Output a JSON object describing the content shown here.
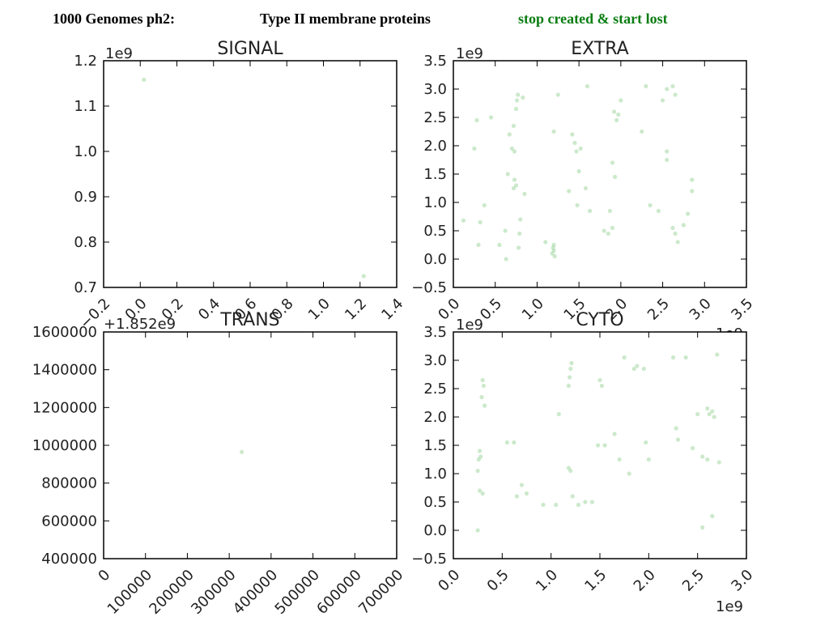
{
  "header": {
    "dataset": "1000 Genomes ph2:",
    "protein_type": "Type II membrane proteins",
    "mutation": "stop created & start lost",
    "mutation_color": "#0a7d12"
  },
  "chart_data": [
    {
      "type": "scatter",
      "title": "SIGNAL",
      "xlim": [
        -0.2,
        1.4
      ],
      "ylim": [
        0.7,
        1.2
      ],
      "x_ticks": [
        "−0.2",
        "0.0",
        "0.2",
        "0.4",
        "0.6",
        "0.8",
        "1.0",
        "1.2",
        "1.4"
      ],
      "y_ticks": [
        "0.7",
        "0.8",
        "0.9",
        "1.0",
        "1.1",
        "1.2"
      ],
      "x_offset_text": "+1.852e9",
      "y_offset_text": "1e9",
      "point_color": "#8fcf8f",
      "x": [
        0.02,
        1.22
      ],
      "y": [
        1.158,
        0.725
      ]
    },
    {
      "type": "scatter",
      "title": "EXTRA",
      "xlim": [
        0.0,
        3.5
      ],
      "ylim": [
        -0.5,
        3.5
      ],
      "x_ticks": [
        "0.0",
        "0.5",
        "1.0",
        "1.5",
        "2.0",
        "2.5",
        "3.0",
        "3.5"
      ],
      "y_ticks": [
        "−0.5",
        "0.0",
        "0.5",
        "1.0",
        "1.5",
        "2.0",
        "2.5",
        "3.0",
        "3.5"
      ],
      "x_offset_text": "1e9",
      "y_offset_text": "1e9",
      "point_color": "#8fcf8f",
      "x": [
        0.12,
        0.25,
        0.28,
        0.3,
        0.32,
        0.37,
        0.45,
        0.63,
        0.65,
        0.67,
        0.7,
        0.72,
        0.73,
        0.75,
        0.76,
        0.77,
        0.78,
        0.79,
        0.8,
        0.83,
        0.85,
        0.75,
        0.73,
        0.72,
        1.1,
        1.18,
        1.19,
        1.2,
        1.2,
        1.21,
        1.2,
        1.25,
        1.42,
        1.45,
        1.47,
        1.48,
        1.5,
        1.52,
        1.6,
        1.63,
        1.8,
        1.85,
        1.9,
        1.92,
        1.95,
        1.97,
        2.0,
        1.9,
        1.93,
        1.87,
        2.25,
        2.3,
        2.35,
        2.45,
        2.5,
        2.55,
        2.55,
        2.62,
        2.65,
        2.68,
        2.75,
        2.8,
        2.85,
        2.85,
        2.62,
        2.65,
        2.55,
        1.58,
        1.38,
        0.62,
        0.55
      ],
      "y": [
        0.68,
        1.95,
        2.45,
        0.25,
        0.65,
        0.95,
        2.5,
        0.0,
        1.5,
        2.2,
        1.95,
        1.25,
        1.4,
        2.65,
        2.8,
        2.9,
        0.2,
        0.45,
        0.7,
        2.85,
        1.15,
        1.3,
        1.9,
        2.35,
        0.3,
        0.1,
        0.2,
        0.15,
        0.25,
        0.05,
        2.25,
        2.9,
        2.2,
        2.05,
        1.9,
        0.95,
        1.55,
        1.95,
        3.05,
        0.85,
        0.5,
        0.45,
        0.55,
        2.6,
        2.45,
        2.55,
        2.8,
        1.7,
        1.45,
        0.85,
        2.25,
        3.05,
        0.95,
        0.85,
        2.8,
        3.0,
        1.9,
        3.05,
        2.9,
        0.3,
        0.6,
        0.8,
        1.4,
        1.2,
        0.55,
        0.45,
        1.75,
        1.25,
        1.2,
        0.5,
        0.25
      ]
    },
    {
      "type": "scatter",
      "title": "TRANS",
      "xlim": [
        0,
        700000
      ],
      "ylim": [
        400000,
        1600000
      ],
      "x_ticks": [
        "0",
        "100000",
        "200000",
        "300000",
        "400000",
        "500000",
        "600000",
        "700000"
      ],
      "y_ticks": [
        "400000",
        "600000",
        "800000",
        "1000000",
        "1200000",
        "1400000",
        "1600000"
      ],
      "point_color": "#8fcf8f",
      "x": [
        330000
      ],
      "y": [
        965000
      ]
    },
    {
      "type": "scatter",
      "title": "CYTO",
      "xlim": [
        0.0,
        3.0
      ],
      "ylim": [
        -0.5,
        3.5
      ],
      "x_ticks": [
        "0.0",
        "0.5",
        "1.0",
        "1.5",
        "2.0",
        "2.5",
        "3.0"
      ],
      "y_ticks": [
        "−0.5",
        "0.0",
        "0.5",
        "1.0",
        "1.5",
        "2.0",
        "2.5",
        "3.0",
        "3.5"
      ],
      "x_offset_text": "1e9",
      "y_offset_text": "1e9",
      "point_color": "#8fcf8f",
      "x": [
        0.25,
        0.26,
        0.27,
        0.28,
        0.29,
        0.3,
        0.31,
        0.32,
        0.27,
        0.3,
        0.25,
        0.55,
        0.62,
        0.65,
        0.7,
        0.75,
        0.92,
        1.05,
        1.08,
        1.18,
        1.19,
        1.2,
        1.21,
        1.2,
        1.18,
        1.22,
        1.28,
        1.35,
        1.42,
        1.5,
        1.52,
        1.55,
        1.65,
        1.7,
        1.75,
        1.8,
        1.85,
        1.88,
        1.95,
        1.97,
        2.0,
        2.25,
        2.28,
        2.3,
        2.38,
        2.45,
        2.5,
        2.55,
        2.6,
        2.62,
        2.65,
        2.67,
        2.7,
        2.72,
        2.55,
        2.6,
        2.65,
        1.48
      ],
      "y": [
        0.0,
        1.25,
        1.4,
        1.3,
        2.35,
        2.65,
        2.55,
        2.2,
        0.7,
        0.65,
        1.05,
        1.55,
        1.55,
        0.6,
        0.8,
        0.65,
        0.45,
        0.45,
        2.05,
        2.55,
        2.7,
        2.85,
        2.95,
        1.05,
        1.1,
        0.6,
        0.45,
        0.5,
        0.5,
        2.65,
        2.55,
        1.5,
        1.7,
        1.25,
        3.05,
        1.0,
        2.85,
        2.9,
        2.85,
        1.55,
        1.25,
        3.05,
        1.8,
        1.6,
        3.05,
        1.45,
        2.05,
        0.05,
        1.25,
        2.05,
        2.1,
        2.0,
        3.1,
        1.2,
        1.3,
        2.15,
        0.25,
        1.5
      ]
    }
  ]
}
